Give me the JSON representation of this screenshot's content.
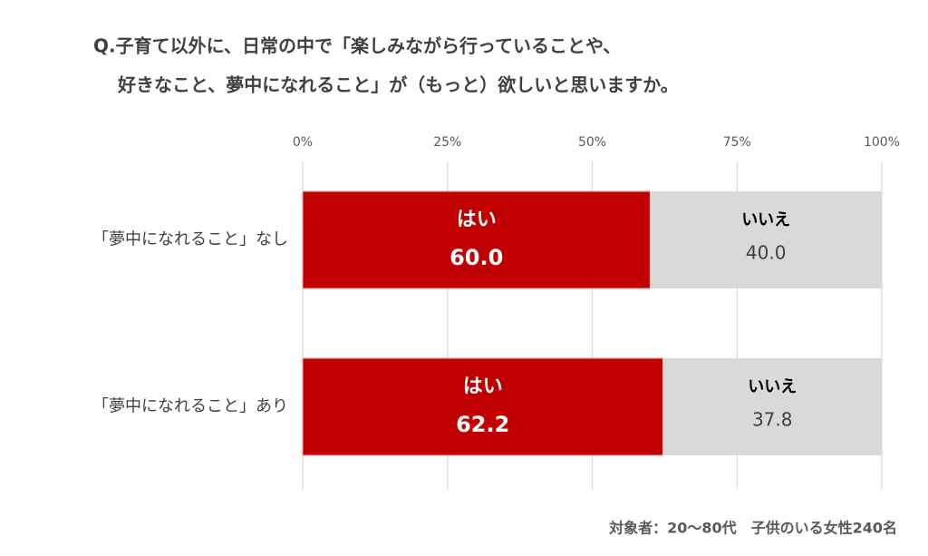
{
  "chart_data": {
    "type": "stacked-bar-horizontal",
    "title": [
      "Q.子育て以外に、日常の中で「楽しみながら行っていることや、",
      "好きなこと、夢中になれること」が（もっと）欲しいと思いますか。"
    ],
    "categories": [
      "「夢中になれること」なし",
      "「夢中になれること」あり"
    ],
    "series": [
      {
        "name": "はい",
        "color": "#c00000",
        "values": [
          60.0,
          62.2
        ],
        "value_labels": [
          "60.0",
          "62.2"
        ]
      },
      {
        "name": "いいえ",
        "color": "#d9d9d9",
        "values": [
          40.0,
          37.8
        ],
        "value_labels": [
          "40.0",
          "37.8"
        ]
      }
    ],
    "xlim": [
      0,
      100
    ],
    "xticks": [
      {
        "value": 0,
        "label": "0%"
      },
      {
        "value": 25,
        "label": "25%"
      },
      {
        "value": 50,
        "label": "50%"
      },
      {
        "value": 75,
        "label": "75%"
      },
      {
        "value": 100,
        "label": "100%"
      }
    ],
    "grid": true,
    "footnote": "対象者：20～80代　子供のいる女性240名"
  }
}
